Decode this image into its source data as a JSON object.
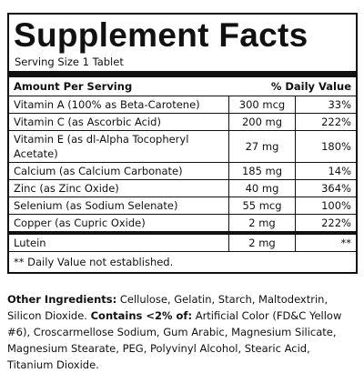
{
  "header": {
    "title": "Supplement Facts",
    "serving": "Serving Size 1 Tablet"
  },
  "table": {
    "columns": [
      "Amount Per Serving",
      "% Daily Value"
    ],
    "rows": [
      [
        "Vitamin A (100% as Beta-Carotene)",
        "300 mcg",
        "33%"
      ],
      [
        "Vitamin C (as Ascorbic Acid)",
        "200 mg",
        "222%"
      ],
      [
        "Vitamin E (as dl-Alpha Tocopheryl Acetate)",
        "27 mg",
        "180%"
      ],
      [
        "Calcium (as Calcium Carbonate)",
        "185 mg",
        "14%"
      ],
      [
        "Zinc (as Zinc Oxide)",
        "40 mg",
        "364%"
      ],
      [
        "Selenium (as Sodium Selenate)",
        "55 mcg",
        "100%"
      ],
      [
        "Copper (as Cupric Oxide)",
        "2 mg",
        "222%"
      ]
    ],
    "extra_rows": [
      [
        "Lutein",
        "2 mg",
        "**"
      ]
    ],
    "footnote": "** Daily Value not established."
  },
  "ingredients": {
    "label": "Other Ingredients:",
    "text": "Cellulose, Gelatin, Starch, Maltodextrin, Silicon Dioxide.",
    "contains_label": "Contains <2% of:",
    "contains_text": "Artificial Color (FD&C Yellow #6), Croscarmellose Sodium, Gum Arabic, Magnesium Silicate, Magnesium Stearate, PEG, Polyvinyl Alcohol, Stearic Acid, Titanium Dioxide."
  }
}
